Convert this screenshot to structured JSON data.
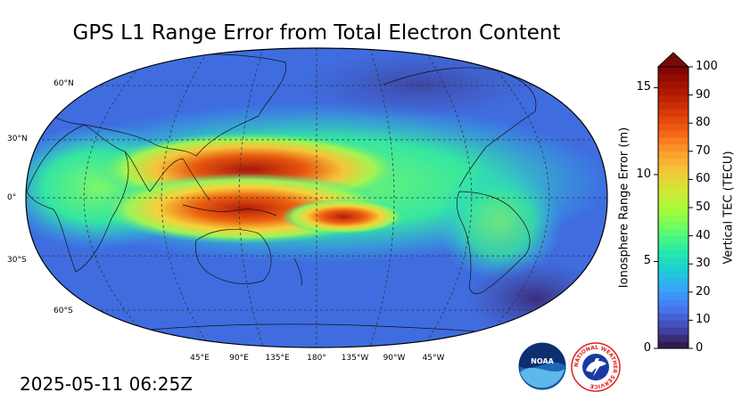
{
  "title": "GPS L1 Range Error from Total Electron Content",
  "timestamp": "2025-05-11 06:25Z",
  "map": {
    "projection": "Robinson",
    "central_longitude": 180,
    "latitude_labels": [
      "60°N",
      "30°N",
      "0°",
      "30°S",
      "60°S"
    ],
    "longitude_labels": [
      "45°E",
      "90°E",
      "135°E",
      "180°",
      "135°W",
      "90°W",
      "45°W"
    ]
  },
  "colorbar": {
    "left_axis_label": "Ionosphere Range Error (m)",
    "right_axis_label": "Vertical TEC (TECU)",
    "left_ticks": [
      "0",
      "5",
      "10",
      "15"
    ],
    "right_ticks": [
      "0",
      "10",
      "20",
      "30",
      "40",
      "50",
      "60",
      "70",
      "80",
      "90",
      "100"
    ],
    "tec_range": [
      0,
      100
    ],
    "range_error_range": [
      0,
      16.2
    ],
    "colormap": "turbo",
    "extend": "max"
  },
  "logos": {
    "noaa": {
      "text": "NOAA",
      "color": "#1a66b8"
    },
    "nws": {
      "ring_text": "NATIONAL WEATHER SERVICE",
      "ring_color": "#e02020",
      "inner_color": "#1a3aa0"
    }
  }
}
